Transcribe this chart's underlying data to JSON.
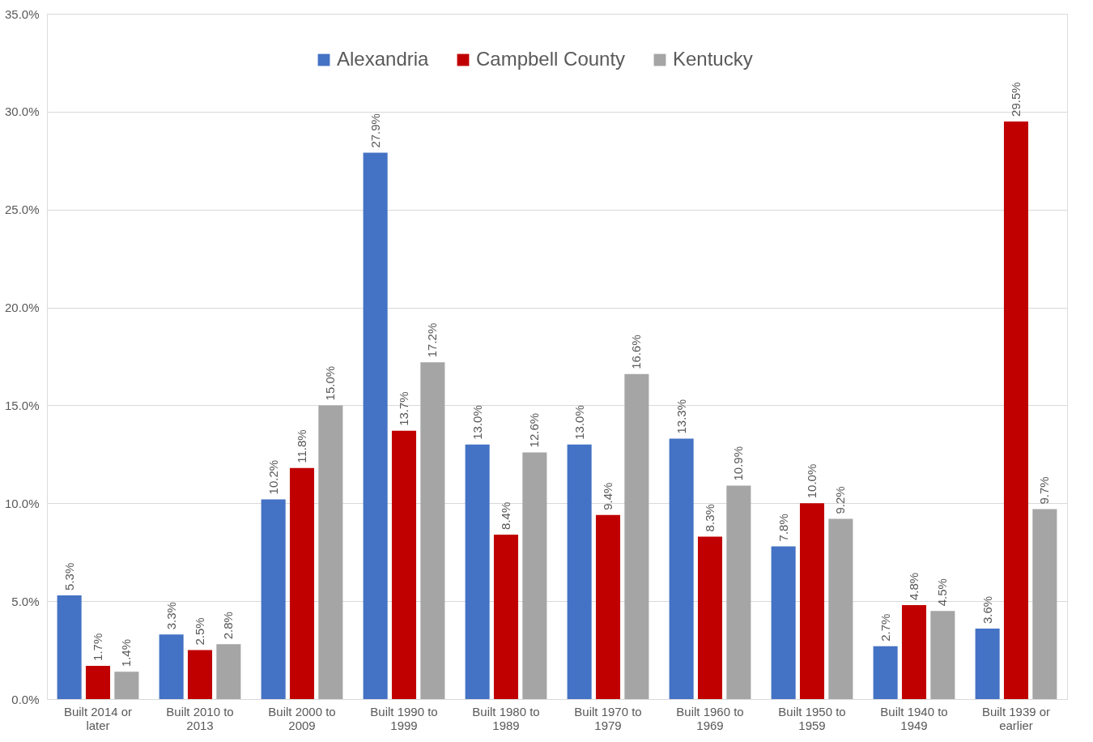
{
  "chart_data": {
    "type": "bar",
    "categories": [
      "Built 2014 or later",
      "Built 2010 to 2013",
      "Built 2000 to 2009",
      "Built 1990 to 1999",
      "Built 1980 to 1989",
      "Built 1970 to 1979",
      "Built 1960 to 1969",
      "Built 1950 to 1959",
      "Built 1940 to 1949",
      "Built 1939 or earlier"
    ],
    "series": [
      {
        "name": "Alexandria",
        "color": "#4472c4",
        "values": [
          5.3,
          3.3,
          10.2,
          27.9,
          13.0,
          13.0,
          13.3,
          7.8,
          2.7,
          3.6
        ],
        "value_labels": [
          "5.3%",
          "3.3%",
          "10.2%",
          "27.9%",
          "13.0%",
          "13.0%",
          "13.3%",
          "7.8%",
          "2.7%",
          "3.6%"
        ]
      },
      {
        "name": "Campbell County",
        "color": "#c00000",
        "values": [
          1.7,
          2.5,
          11.8,
          13.7,
          8.4,
          9.4,
          8.3,
          10.0,
          4.8,
          29.5
        ],
        "value_labels": [
          "1.7%",
          "2.5%",
          "11.8%",
          "13.7%",
          "8.4%",
          "9.4%",
          "8.3%",
          "10.0%",
          "4.8%",
          "29.5%"
        ]
      },
      {
        "name": "Kentucky",
        "color": "#a5a5a5",
        "values": [
          1.4,
          2.8,
          15.0,
          17.2,
          12.6,
          16.6,
          10.9,
          9.2,
          4.5,
          9.7
        ],
        "value_labels": [
          "1.4%",
          "2.8%",
          "15.0%",
          "17.2%",
          "12.6%",
          "16.6%",
          "10.9%",
          "9.2%",
          "4.5%",
          "9.7%"
        ]
      }
    ],
    "ylim": [
      0,
      35
    ],
    "yticks": [
      {
        "value": 0,
        "label": "0.0%"
      },
      {
        "value": 5,
        "label": "5.0%"
      },
      {
        "value": 10,
        "label": "10.0%"
      },
      {
        "value": 15,
        "label": "15.0%"
      },
      {
        "value": 20,
        "label": "20.0%"
      },
      {
        "value": 25,
        "label": "25.0%"
      },
      {
        "value": 30,
        "label": "30.0%"
      },
      {
        "value": 35,
        "label": "35.0%"
      }
    ],
    "grid": "y",
    "legend": "top"
  }
}
